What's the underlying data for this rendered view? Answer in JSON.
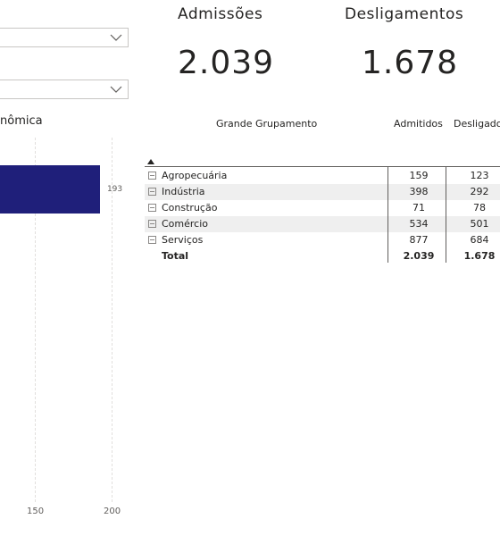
{
  "kpis": {
    "admissoes": {
      "label": "Admissões",
      "value": "2.039"
    },
    "desligamentos": {
      "label": "Desligamentos",
      "value": "1.678"
    }
  },
  "chart": {
    "title_fragment": "nômica",
    "axis_ticks": [
      "150",
      "200"
    ],
    "accent_color": "#1f1f7a"
  },
  "chart_data": {
    "type": "bar",
    "orientation": "horizontal",
    "categories": [
      ""
    ],
    "values": [
      193
    ],
    "data_labels": [
      "193"
    ],
    "title": "nômica",
    "xlim": [
      0,
      200
    ],
    "xticks": [
      150,
      200
    ],
    "grid": true
  },
  "table": {
    "headers": {
      "group": "Grande Grupamento",
      "admitidos": "Admitidos",
      "desligados": "Desligado"
    },
    "sort_icon": "sort-ascending-icon",
    "rows": [
      {
        "name": "Agropecuária",
        "admitidos": "159",
        "desligados": "123"
      },
      {
        "name": "Indústria",
        "admitidos": "398",
        "desligados": "292"
      },
      {
        "name": "Construção",
        "admitidos": "71",
        "desligados": "78"
      },
      {
        "name": "Comércio",
        "admitidos": "534",
        "desligados": "501"
      },
      {
        "name": "Serviços",
        "admitidos": "877",
        "desligados": "684"
      }
    ],
    "total": {
      "name": "Total",
      "admitidos": "2.039",
      "desligados": "1.678"
    }
  }
}
